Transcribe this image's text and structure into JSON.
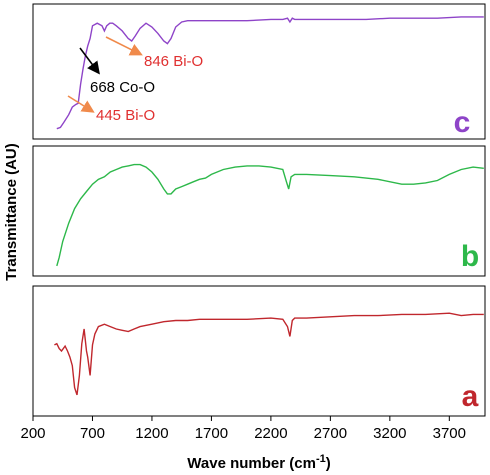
{
  "chart_data": {
    "type": "line",
    "title": "",
    "xlabel": "Wave number (cm",
    "xlabel_sup": "-1",
    "xlabel_close": ")",
    "ylabel": "Transmittance (AU)",
    "xlim": [
      200,
      4000
    ],
    "xticks": [
      200,
      700,
      1200,
      1700,
      2200,
      2700,
      3200,
      3700
    ],
    "grid": false,
    "panels": [
      {
        "letter": "c",
        "color": "#8e44c8",
        "ylim": [
          0,
          100
        ],
        "x": [
          400,
          430,
          460,
          500,
          530,
          560,
          580,
          600,
          620,
          640,
          660,
          680,
          700,
          740,
          780,
          800,
          820,
          846,
          870,
          900,
          950,
          1000,
          1030,
          1060,
          1100,
          1150,
          1200,
          1250,
          1300,
          1330,
          1360,
          1400,
          1450,
          1500,
          1600,
          1800,
          2000,
          2200,
          2300,
          2340,
          2360,
          2380,
          2400,
          2600,
          2800,
          3000,
          3200,
          3400,
          3600,
          3800,
          3990
        ],
        "y": [
          5,
          6,
          10,
          16,
          22,
          24,
          25,
          40,
          52,
          62,
          70,
          76,
          86,
          88,
          86,
          82,
          86,
          88,
          88,
          86,
          82,
          76,
          74,
          78,
          84,
          88,
          85,
          80,
          74,
          72,
          76,
          85,
          89,
          90,
          90,
          90,
          90,
          91,
          91,
          92,
          89,
          92,
          91,
          91,
          91,
          91,
          92,
          92,
          92,
          93,
          93
        ],
        "annotations": [
          {
            "text": "846 Bi-O",
            "color": "#e03030"
          },
          {
            "text": "668 Co-O",
            "color": "#000000"
          },
          {
            "text": "445 Bi-O",
            "color": "#e03030"
          }
        ]
      },
      {
        "letter": "b",
        "color": "#2db84a",
        "ylim": [
          0,
          100
        ],
        "x": [
          400,
          420,
          450,
          500,
          550,
          600,
          650,
          700,
          750,
          800,
          850,
          900,
          950,
          1000,
          1050,
          1100,
          1150,
          1200,
          1250,
          1300,
          1330,
          1360,
          1400,
          1450,
          1500,
          1550,
          1600,
          1650,
          1700,
          1800,
          1900,
          2000,
          2100,
          2200,
          2300,
          2330,
          2350,
          2370,
          2400,
          2500,
          2700,
          2900,
          3100,
          3300,
          3400,
          3500,
          3600,
          3700,
          3800,
          3900,
          3990
        ],
        "y": [
          5,
          12,
          25,
          40,
          52,
          60,
          66,
          72,
          76,
          78,
          82,
          84,
          86,
          87,
          88,
          88,
          86,
          82,
          76,
          68,
          64,
          64,
          68,
          70,
          72,
          74,
          76,
          77,
          80,
          84,
          86,
          87,
          87,
          86,
          84,
          74,
          68,
          78,
          80,
          80,
          79,
          78,
          76,
          72,
          72,
          73,
          75,
          80,
          84,
          86,
          85
        ],
        "annotations": []
      },
      {
        "letter": "a",
        "color": "#c0272d",
        "ylim": [
          0,
          100
        ],
        "x": [
          380,
          400,
          420,
          440,
          470,
          490,
          510,
          530,
          550,
          570,
          590,
          610,
          630,
          650,
          660,
          680,
          700,
          720,
          750,
          800,
          850,
          900,
          950,
          1000,
          1050,
          1100,
          1200,
          1300,
          1400,
          1500,
          1600,
          1800,
          2000,
          2200,
          2300,
          2340,
          2360,
          2380,
          2400,
          2500,
          2700,
          2900,
          3100,
          3300,
          3500,
          3700,
          3800,
          3900,
          3990
        ],
        "y": [
          55,
          56,
          52,
          50,
          54,
          50,
          45,
          38,
          20,
          14,
          30,
          56,
          68,
          50,
          45,
          30,
          55,
          64,
          70,
          72,
          70,
          68,
          67,
          66,
          68,
          70,
          72,
          74,
          75,
          75,
          76,
          76,
          76,
          77,
          76,
          70,
          62,
          75,
          77,
          77,
          78,
          79,
          79,
          80,
          80,
          81,
          79,
          80,
          80
        ],
        "annotations": []
      }
    ]
  }
}
